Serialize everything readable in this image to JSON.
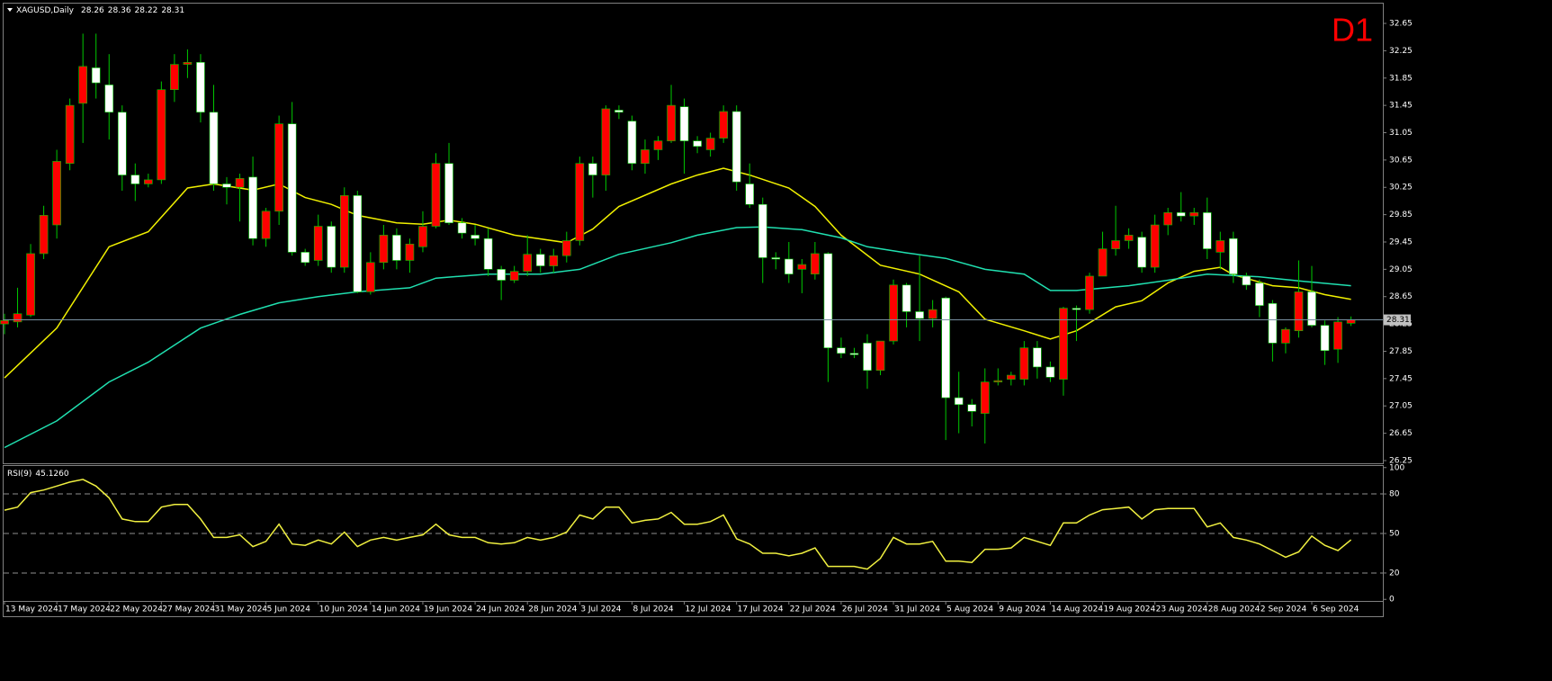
{
  "chart_data": {
    "type": "candlestick",
    "title": "XAGUSD,Daily",
    "timeframe_label": "D1",
    "up_color": "#ff0000",
    "down_color": "#ffffff",
    "wick_color": "#00c800",
    "ylim": [
      26.21,
      32.94
    ],
    "yticks": [
      26.25,
      26.65,
      27.05,
      27.45,
      27.85,
      28.25,
      28.65,
      29.05,
      29.45,
      29.85,
      30.25,
      30.65,
      31.05,
      31.45,
      31.85,
      32.25,
      32.65
    ],
    "xtick_labels": [
      "13 May 2024",
      "17 May 2024",
      "22 May 2024",
      "27 May 2024",
      "31 May 2024",
      "5 Jun 2024",
      "10 Jun 2024",
      "14 Jun 2024",
      "19 Jun 2024",
      "24 Jun 2024",
      "28 Jun 2024",
      "3 Jul 2024",
      "8 Jul 2024",
      "12 Jul 2024",
      "17 Jul 2024",
      "22 Jul 2024",
      "26 Jul 2024",
      "31 Jul 2024",
      "5 Aug 2024",
      "9 Aug 2024",
      "14 Aug 2024",
      "19 Aug 2024",
      "23 Aug 2024",
      "28 Aug 2024",
      "2 Sep 2024",
      "6 Sep 2024"
    ],
    "candles": [
      [
        28.25,
        28.4,
        28.1,
        28.3
      ],
      [
        28.28,
        28.78,
        28.2,
        28.4
      ],
      [
        28.38,
        29.42,
        28.35,
        29.28
      ],
      [
        29.28,
        29.98,
        29.2,
        29.84
      ],
      [
        29.7,
        30.8,
        29.5,
        30.63
      ],
      [
        30.6,
        31.55,
        30.5,
        31.45
      ],
      [
        31.48,
        32.5,
        30.9,
        32.02
      ],
      [
        32.0,
        32.5,
        31.55,
        31.78
      ],
      [
        31.75,
        32.2,
        30.95,
        31.35
      ],
      [
        31.35,
        31.45,
        30.2,
        30.43
      ],
      [
        30.43,
        30.6,
        30.05,
        30.3
      ],
      [
        30.3,
        30.45,
        30.25,
        30.36
      ],
      [
        30.36,
        31.8,
        30.3,
        31.68
      ],
      [
        31.68,
        32.2,
        31.5,
        32.05
      ],
      [
        32.05,
        32.27,
        31.85,
        32.08
      ],
      [
        32.08,
        32.2,
        31.2,
        31.35
      ],
      [
        31.35,
        31.75,
        30.2,
        30.3
      ],
      [
        30.3,
        30.4,
        30.0,
        30.25
      ],
      [
        30.25,
        30.45,
        29.75,
        30.38
      ],
      [
        30.4,
        30.7,
        29.4,
        29.5
      ],
      [
        29.5,
        29.95,
        29.38,
        29.9
      ],
      [
        29.9,
        31.3,
        29.7,
        31.18
      ],
      [
        31.18,
        31.5,
        29.25,
        29.3
      ],
      [
        29.3,
        29.35,
        29.1,
        29.15
      ],
      [
        29.18,
        29.85,
        29.1,
        29.68
      ],
      [
        29.68,
        29.75,
        29.0,
        29.08
      ],
      [
        29.08,
        30.25,
        29.0,
        30.13
      ],
      [
        30.13,
        30.2,
        28.7,
        28.72
      ],
      [
        28.72,
        29.3,
        28.68,
        29.15
      ],
      [
        29.15,
        29.7,
        29.05,
        29.55
      ],
      [
        29.55,
        29.65,
        29.05,
        29.18
      ],
      [
        29.18,
        29.5,
        29.0,
        29.42
      ],
      [
        29.38,
        29.9,
        29.3,
        29.68
      ],
      [
        29.68,
        30.75,
        29.65,
        30.6
      ],
      [
        30.6,
        30.9,
        29.7,
        29.73
      ],
      [
        29.73,
        29.8,
        29.5,
        29.58
      ],
      [
        29.55,
        29.7,
        29.4,
        29.5
      ],
      [
        29.5,
        29.65,
        28.95,
        29.05
      ],
      [
        29.05,
        29.1,
        28.6,
        28.89
      ],
      [
        28.89,
        29.1,
        28.85,
        29.02
      ],
      [
        29.02,
        29.55,
        28.95,
        29.27
      ],
      [
        29.27,
        29.35,
        29.0,
        29.1
      ],
      [
        29.1,
        29.35,
        29.0,
        29.25
      ],
      [
        29.25,
        29.6,
        29.15,
        29.47
      ],
      [
        29.47,
        30.7,
        29.4,
        30.6
      ],
      [
        30.6,
        30.7,
        30.1,
        30.43
      ],
      [
        30.43,
        31.45,
        30.2,
        31.4
      ],
      [
        31.38,
        31.45,
        31.25,
        31.35
      ],
      [
        31.22,
        31.3,
        30.5,
        30.6
      ],
      [
        30.6,
        30.95,
        30.45,
        30.8
      ],
      [
        30.8,
        31.0,
        30.65,
        30.93
      ],
      [
        30.93,
        31.75,
        30.9,
        31.45
      ],
      [
        31.43,
        31.55,
        30.45,
        30.93
      ],
      [
        30.93,
        31.0,
        30.75,
        30.85
      ],
      [
        30.8,
        31.05,
        30.7,
        30.97
      ],
      [
        30.97,
        31.45,
        30.9,
        31.36
      ],
      [
        31.36,
        31.45,
        30.2,
        30.33
      ],
      [
        30.3,
        30.6,
        29.95,
        30.0
      ],
      [
        30.0,
        30.1,
        28.85,
        29.22
      ],
      [
        29.22,
        29.3,
        29.05,
        29.2
      ],
      [
        29.2,
        29.45,
        28.85,
        28.98
      ],
      [
        29.05,
        29.2,
        28.7,
        29.12
      ],
      [
        28.98,
        29.45,
        28.9,
        29.28
      ],
      [
        29.28,
        29.3,
        27.4,
        27.9
      ],
      [
        27.9,
        28.05,
        27.75,
        27.82
      ],
      [
        27.82,
        27.9,
        27.75,
        27.8
      ],
      [
        27.97,
        28.1,
        27.3,
        27.57
      ],
      [
        27.57,
        28.0,
        27.5,
        28.0
      ],
      [
        28.0,
        28.9,
        27.95,
        28.82
      ],
      [
        28.82,
        28.85,
        28.2,
        28.43
      ],
      [
        28.43,
        29.25,
        28.0,
        28.33
      ],
      [
        28.33,
        28.6,
        28.2,
        28.46
      ],
      [
        28.63,
        28.65,
        26.55,
        27.17
      ],
      [
        27.17,
        27.55,
        26.65,
        27.07
      ],
      [
        27.07,
        27.15,
        26.75,
        26.97
      ],
      [
        26.94,
        27.6,
        26.5,
        27.4
      ],
      [
        27.4,
        27.6,
        27.35,
        27.42
      ],
      [
        27.44,
        27.55,
        27.35,
        27.5
      ],
      [
        27.44,
        28.0,
        27.35,
        27.9
      ],
      [
        27.9,
        28.0,
        27.45,
        27.62
      ],
      [
        27.62,
        27.7,
        27.4,
        27.47
      ],
      [
        27.44,
        28.5,
        27.2,
        28.48
      ],
      [
        28.48,
        28.52,
        28.0,
        28.46
      ],
      [
        28.46,
        29.0,
        28.4,
        28.95
      ],
      [
        28.95,
        29.6,
        28.95,
        29.35
      ],
      [
        29.35,
        29.98,
        29.25,
        29.47
      ],
      [
        29.47,
        29.65,
        29.35,
        29.55
      ],
      [
        29.52,
        29.6,
        29.0,
        29.08
      ],
      [
        29.08,
        29.85,
        29.0,
        29.7
      ],
      [
        29.7,
        29.95,
        29.55,
        29.88
      ],
      [
        29.88,
        30.18,
        29.75,
        29.83
      ],
      [
        29.83,
        29.95,
        29.7,
        29.88
      ],
      [
        29.88,
        30.1,
        29.2,
        29.35
      ],
      [
        29.3,
        29.6,
        29.05,
        29.47
      ],
      [
        29.5,
        29.6,
        28.85,
        28.98
      ],
      [
        28.95,
        29.0,
        28.75,
        28.82
      ],
      [
        28.85,
        28.9,
        28.35,
        28.52
      ],
      [
        28.55,
        28.6,
        27.7,
        27.97
      ],
      [
        27.97,
        28.2,
        27.82,
        28.17
      ],
      [
        28.15,
        29.18,
        28.05,
        28.72
      ],
      [
        28.72,
        29.1,
        28.2,
        28.23
      ],
      [
        28.23,
        28.3,
        27.65,
        27.86
      ],
      [
        27.88,
        28.35,
        27.68,
        28.28
      ],
      [
        28.26,
        28.36,
        28.22,
        28.31
      ]
    ],
    "series": [
      {
        "color": "#f0f000",
        "x": [
          0,
          4,
          8,
          11,
          14,
          16,
          19,
          21,
          23,
          25,
          27,
          30,
          32,
          34,
          36,
          39,
          43,
          45,
          47,
          51,
          53,
          55,
          57,
          60,
          62,
          64,
          67,
          70,
          73,
          75,
          78,
          80,
          82,
          85,
          87,
          89,
          91,
          93,
          94,
          97,
          99,
          101,
          103
        ],
        "values": [
          27.46,
          28.19,
          29.38,
          29.6,
          30.24,
          30.3,
          30.21,
          30.3,
          30.1,
          30.0,
          29.84,
          29.73,
          29.71,
          29.77,
          29.71,
          29.55,
          29.44,
          29.64,
          29.97,
          30.3,
          30.43,
          30.53,
          30.43,
          30.24,
          29.97,
          29.55,
          29.11,
          28.98,
          28.72,
          28.32,
          28.15,
          28.03,
          28.15,
          28.5,
          28.59,
          28.85,
          29.02,
          29.08,
          28.97,
          28.81,
          28.78,
          28.68,
          28.61
        ]
      },
      {
        "color": "#20e0b0",
        "x": [
          0,
          4,
          8,
          11,
          15,
          18,
          21,
          24,
          27,
          31,
          33,
          37,
          41,
          44,
          47,
          51,
          53,
          56,
          58,
          61,
          64,
          66,
          69,
          72,
          75,
          78,
          80,
          82,
          86,
          89,
          92,
          96,
          99,
          103
        ],
        "values": [
          26.44,
          26.83,
          27.4,
          27.69,
          28.19,
          28.39,
          28.56,
          28.65,
          28.72,
          28.78,
          28.92,
          28.98,
          28.98,
          29.05,
          29.27,
          29.44,
          29.55,
          29.66,
          29.67,
          29.63,
          29.51,
          29.38,
          29.29,
          29.21,
          29.05,
          28.98,
          28.74,
          28.74,
          28.81,
          28.89,
          28.98,
          28.94,
          28.88,
          28.81
        ]
      }
    ],
    "rsi": {
      "title": "RSI(9)",
      "last_value_label": "45.1260",
      "color": "#f0f040",
      "ylim": [
        -1.2,
        101.2
      ],
      "yticks": [
        0,
        20,
        50,
        80,
        100
      ],
      "levels": [
        20,
        50,
        80
      ],
      "values": [
        67.7,
        70,
        81,
        83,
        86,
        89,
        91,
        86,
        77,
        61,
        59,
        59,
        70,
        72,
        72,
        61,
        47,
        47,
        49,
        40,
        44,
        57,
        42,
        41,
        45,
        42,
        51,
        40,
        45,
        47,
        45,
        47,
        49,
        57,
        49,
        47,
        47,
        43,
        42,
        43,
        47,
        45,
        47,
        51,
        64,
        61,
        70,
        70,
        58,
        60,
        61,
        66,
        57,
        57,
        59,
        64,
        46,
        42,
        35,
        35,
        33,
        35,
        39,
        25,
        25,
        25,
        23,
        31,
        47,
        42,
        42,
        44,
        29,
        29,
        28,
        38,
        38,
        39,
        47,
        44,
        41,
        58,
        58,
        64,
        68,
        69,
        70,
        61,
        68,
        69,
        69,
        69,
        55,
        58,
        47,
        45,
        42,
        37,
        32,
        36,
        48,
        41,
        37,
        45.126
      ]
    }
  }
}
